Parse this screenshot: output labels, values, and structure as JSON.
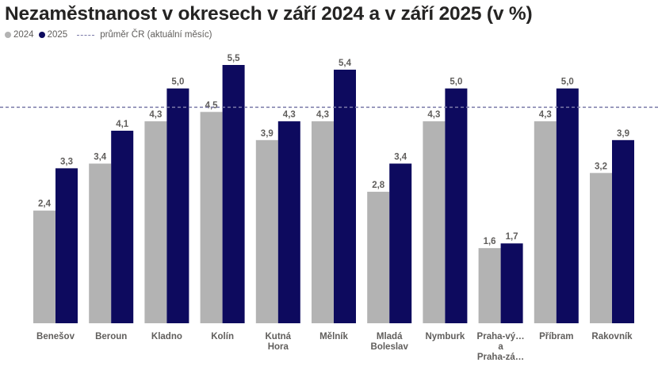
{
  "chart_data": {
    "type": "bar",
    "title": "Nezaměstnanost v okresech v září 2024 a v září 2025 (v %)",
    "categories": [
      "Benešov",
      "Beroun",
      "Kladno",
      "Kolín",
      "Kutná Hora",
      "Mělník",
      "Mladá Boleslav",
      "Nymburk",
      "Praha-vý… a Praha-zá…",
      "Příbram",
      "Rakovník"
    ],
    "category_lines": [
      [
        "Benešov"
      ],
      [
        "Beroun"
      ],
      [
        "Kladno"
      ],
      [
        "Kolín"
      ],
      [
        "Kutná",
        "Hora"
      ],
      [
        "Mělník"
      ],
      [
        "Mladá",
        "Boleslav"
      ],
      [
        "Nymburk"
      ],
      [
        "Praha-vý…",
        "a",
        "Praha-zá…"
      ],
      [
        "Příbram"
      ],
      [
        "Rakovník"
      ]
    ],
    "series": [
      {
        "name": "2024",
        "color": "#b3b3b3",
        "values": [
          2.4,
          3.4,
          4.3,
          4.5,
          3.9,
          4.3,
          2.8,
          4.3,
          1.6,
          4.3,
          3.2
        ],
        "labels": [
          "2,4",
          "3,4",
          "4,3",
          "4,5",
          "3,9",
          "4,3",
          "2,8",
          "4,3",
          "1,6",
          "4,3",
          "3,2"
        ]
      },
      {
        "name": "2025",
        "color": "#0d0a5e",
        "values": [
          3.3,
          4.1,
          5.0,
          5.5,
          4.3,
          5.4,
          3.4,
          5.0,
          1.7,
          5.0,
          3.9
        ],
        "labels": [
          "3,3",
          "4,1",
          "5,0",
          "5,5",
          "4,3",
          "5,4",
          "3,4",
          "5,0",
          "1,7",
          "5,0",
          "3,9"
        ]
      }
    ],
    "reference_line": {
      "name": "průměr ČR (aktuální měsíc)",
      "value": 4.6,
      "color": "#7b7aa8",
      "style": "dashed"
    },
    "ylim": [
      0,
      5.5
    ],
    "legend_position": "top-left",
    "grid": false
  }
}
